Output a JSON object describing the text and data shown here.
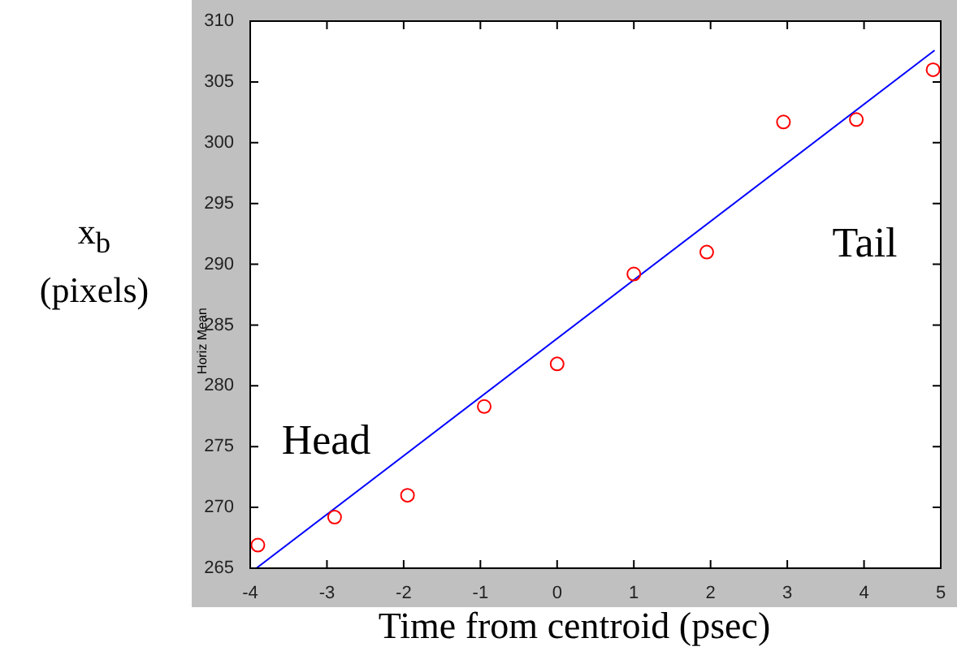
{
  "chart_data": {
    "type": "scatter",
    "xlabel": "Time from centroid (psec)",
    "ylabel": "x$_{b}$ (pixels)",
    "annotations": [
      "Horiz Mean",
      "Head",
      "Tail"
    ],
    "xlim": [
      -4,
      5
    ],
    "xticks": [
      -4,
      -3,
      -2,
      -1,
      0,
      1,
      2,
      3,
      4,
      5
    ],
    "ylim": [
      265,
      310
    ],
    "yticks": [
      265,
      270,
      275,
      280,
      285,
      290,
      295,
      300,
      305,
      310
    ],
    "grid": false,
    "x": [
      -3.9,
      -2.9,
      -1.95,
      -0.95,
      0,
      1,
      1.95,
      2.95,
      3.9,
      4.9
    ],
    "series": [
      {
        "type": "scatter",
        "marker": "circle",
        "color": "#ff0000",
        "values": [
          266.9,
          269.2,
          271.0,
          278.3,
          281.8,
          289.2,
          291.0,
          301.7,
          301.9,
          306.0
        ]
      },
      {
        "type": "line",
        "marker": "none",
        "color": "#0000ff",
        "x": [
          -3.92,
          4.92
        ],
        "values": [
          265,
          307.6
        ]
      }
    ]
  }
}
